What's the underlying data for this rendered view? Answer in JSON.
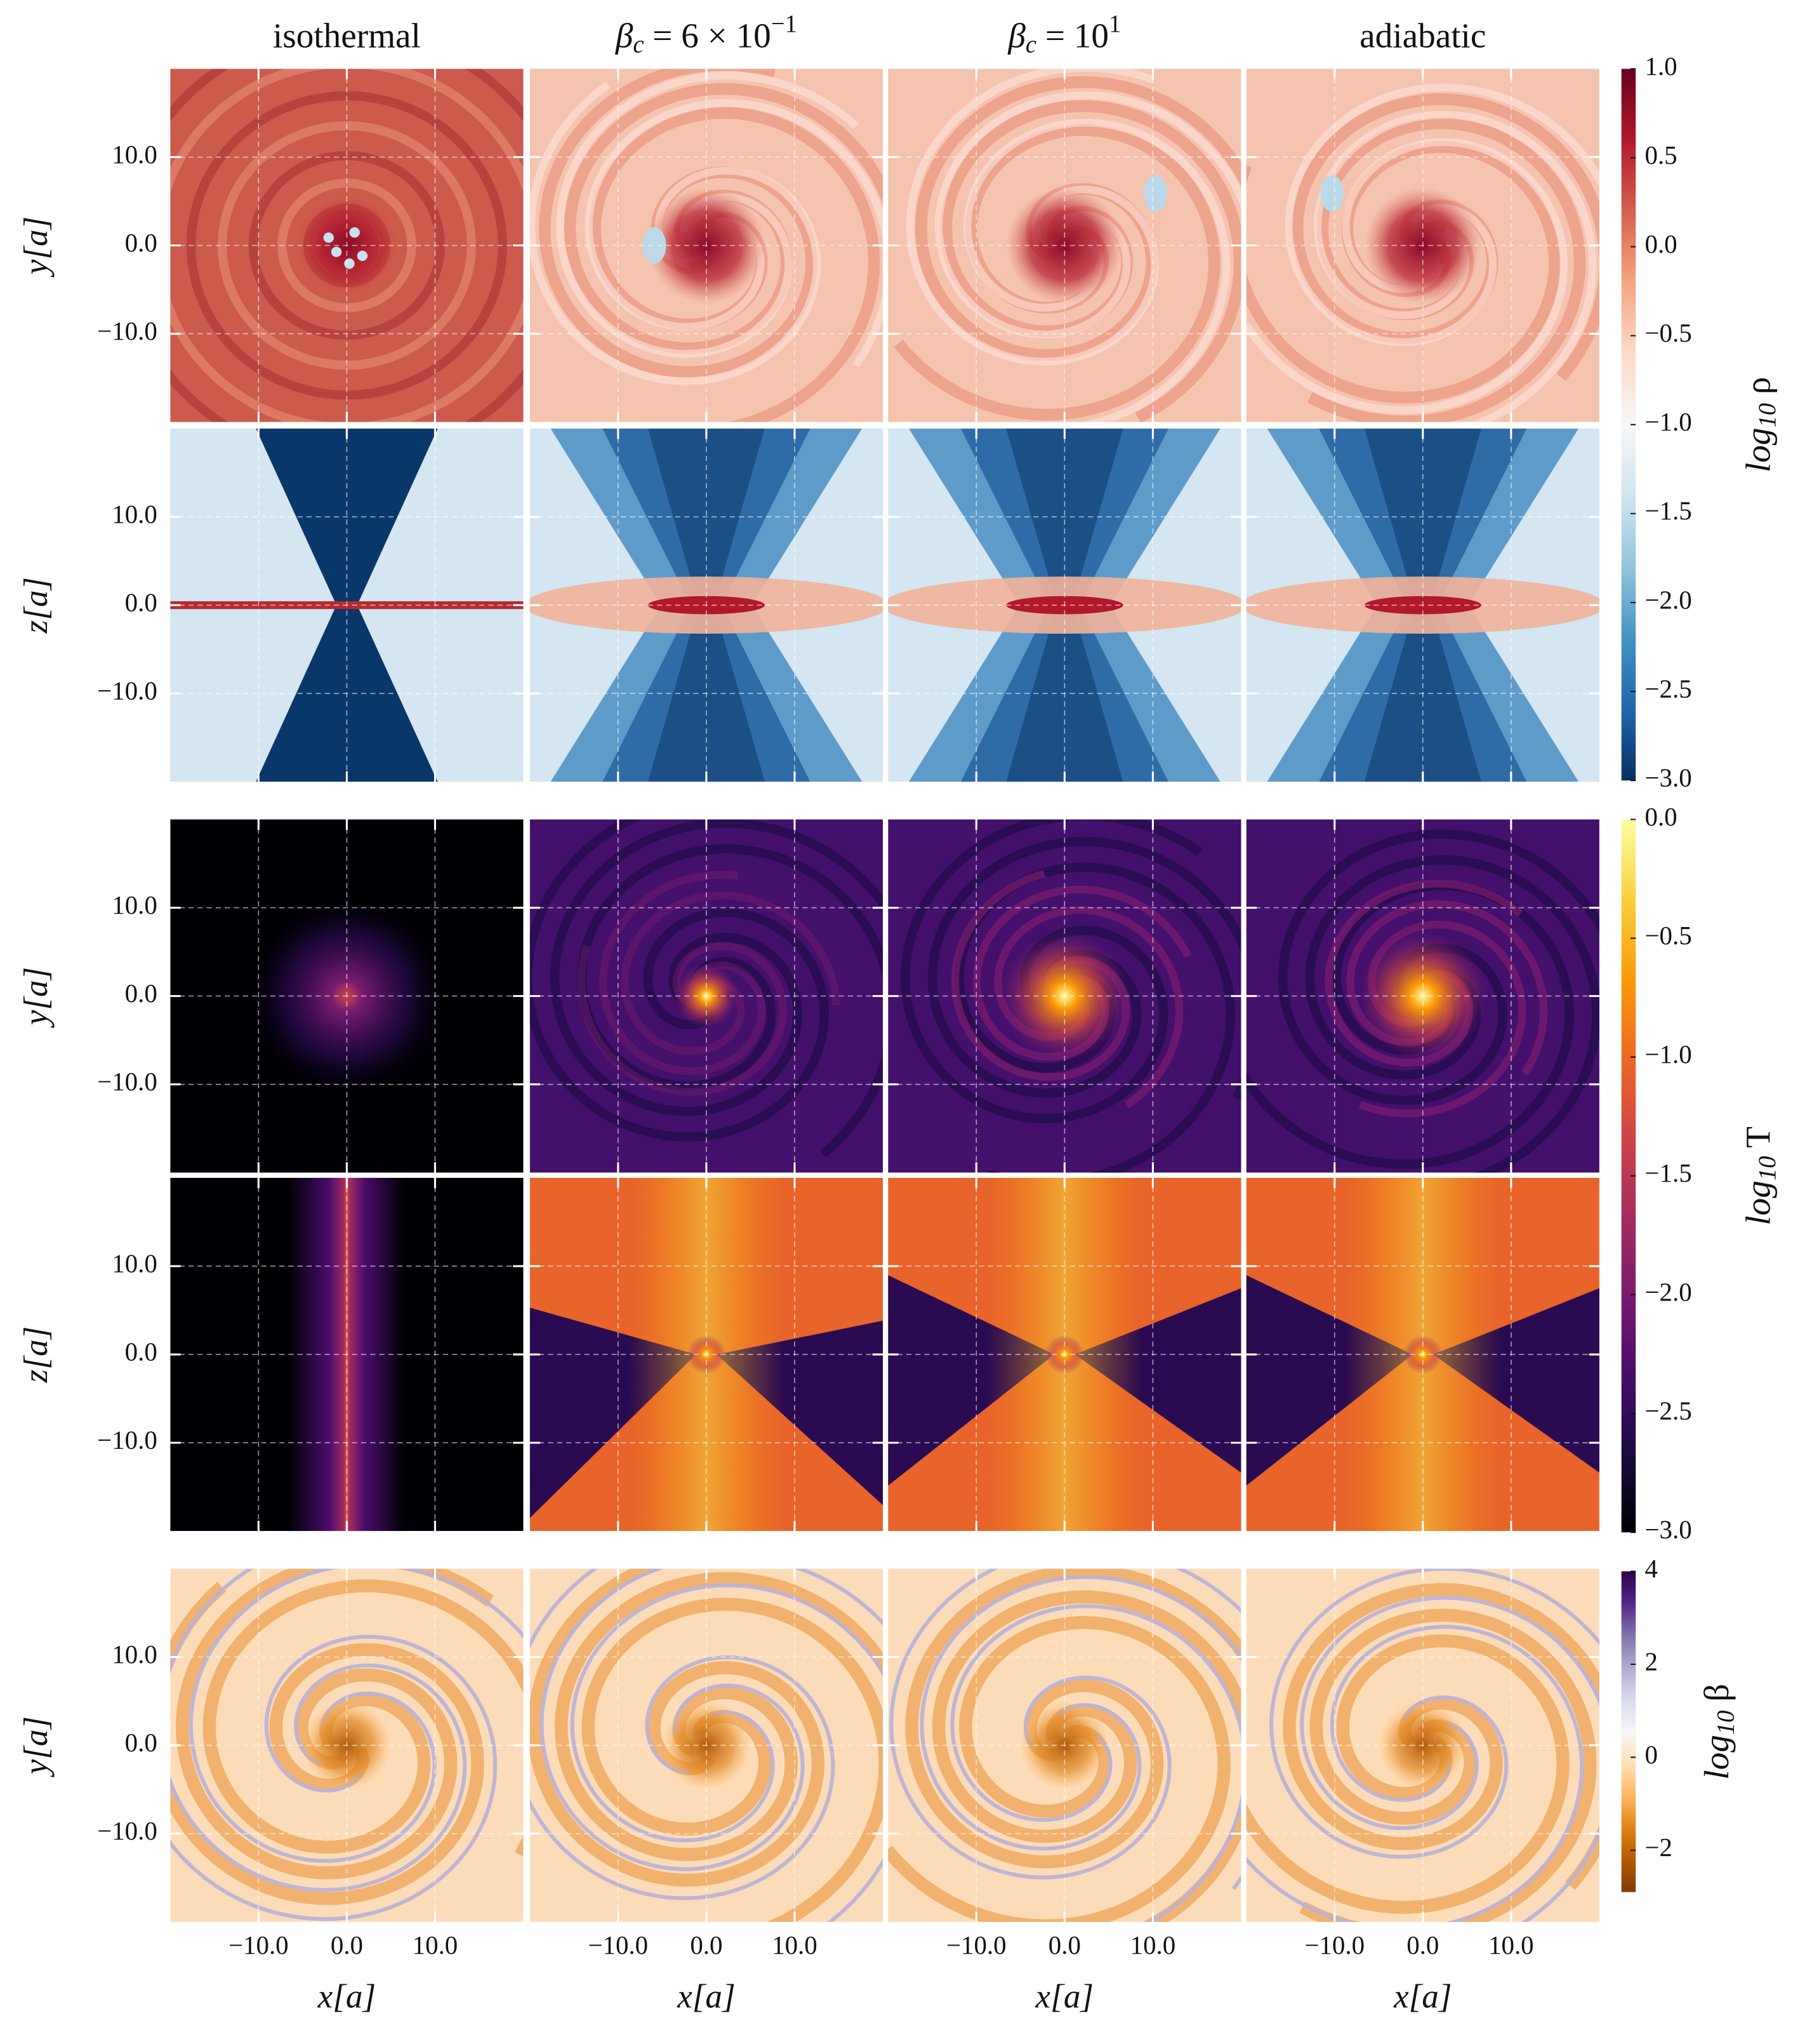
{
  "chart_data": {
    "type": "image-grid",
    "columns": [
      {
        "rest": "isothermal"
      },
      {
        "base": "β",
        "sub": "c",
        "rest": " = 6 × 10",
        "sup": "−1"
      },
      {
        "base": "β",
        "sub": "c",
        "rest": " = 10",
        "sup": "1"
      },
      {
        "rest": "adiabatic"
      }
    ],
    "ylabels": [
      "y[a]",
      "z[a]",
      "y[a]",
      "z[a]",
      "y[a]"
    ],
    "xlabel": "x[a]",
    "xlim": [
      -20,
      20
    ],
    "ylim": [
      -20,
      20
    ],
    "xticks": [
      {
        "value": -10,
        "label": "−10.0"
      },
      {
        "value": 0,
        "label": "0.0"
      },
      {
        "value": 10,
        "label": "10.0"
      }
    ],
    "yticks": [
      {
        "value": -10,
        "label": "−10.0"
      },
      {
        "value": 0,
        "label": "0.0"
      },
      {
        "value": 10,
        "label": "10.0"
      }
    ],
    "grid": true,
    "colorbars": [
      {
        "label": {
          "base": "log",
          "sub": "10",
          "rest": " ρ"
        },
        "cmap": "RdBu_r",
        "lim": [
          -3,
          1
        ],
        "ticks": [
          {
            "value": 1,
            "label": "1.0"
          },
          {
            "value": 0.5,
            "label": "0.5"
          },
          {
            "value": 0,
            "label": "0.0"
          },
          {
            "value": -0.5,
            "label": "−0.5"
          },
          {
            "value": -1,
            "label": "−1.0"
          },
          {
            "value": -1.5,
            "label": "−1.5"
          },
          {
            "value": -2,
            "label": "−2.0"
          },
          {
            "value": -2.5,
            "label": "−2.5"
          },
          {
            "value": -3,
            "label": "−3.0"
          }
        ]
      },
      {
        "label": {
          "base": "log",
          "sub": "10",
          "rest": " T"
        },
        "cmap": "inferno",
        "lim": [
          -3,
          0
        ],
        "ticks": [
          {
            "value": 0,
            "label": "0.0"
          },
          {
            "value": -0.5,
            "label": "−0.5"
          },
          {
            "value": -1,
            "label": "−1.0"
          },
          {
            "value": -1.5,
            "label": "−1.5"
          },
          {
            "value": -2,
            "label": "−2.0"
          },
          {
            "value": -2.5,
            "label": "−2.5"
          },
          {
            "value": -3,
            "label": "−3.0"
          }
        ]
      },
      {
        "label": {
          "base": "log",
          "sub": "10",
          "rest": " β"
        },
        "cmap": "PuOr_r",
        "lim": [
          -2.9,
          4
        ],
        "ticks": [
          4,
          2,
          0,
          {
            "value": -2,
            "label": "−2"
          }
        ]
      }
    ]
  }
}
